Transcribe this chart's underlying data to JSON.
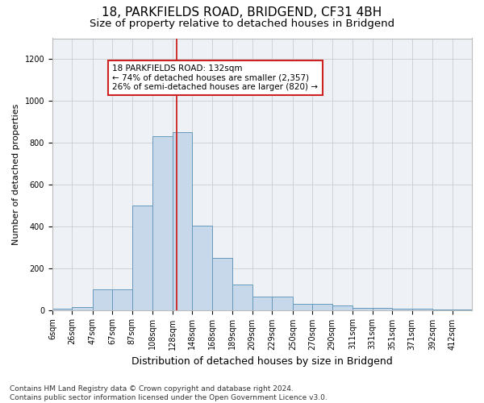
{
  "title_line1": "18, PARKFIELDS ROAD, BRIDGEND, CF31 4BH",
  "title_line2": "Size of property relative to detached houses in Bridgend",
  "xlabel": "Distribution of detached houses by size in Bridgend",
  "ylabel": "Number of detached properties",
  "footnote": "Contains HM Land Registry data © Crown copyright and database right 2024.\nContains public sector information licensed under the Open Government Licence v3.0.",
  "bin_labels": [
    "6sqm",
    "26sqm",
    "47sqm",
    "67sqm",
    "87sqm",
    "108sqm",
    "128sqm",
    "148sqm",
    "168sqm",
    "189sqm",
    "209sqm",
    "229sqm",
    "250sqm",
    "270sqm",
    "290sqm",
    "311sqm",
    "331sqm",
    "351sqm",
    "371sqm",
    "392sqm",
    "412sqm"
  ],
  "bar_heights": [
    5,
    12,
    100,
    100,
    500,
    830,
    850,
    405,
    250,
    120,
    65,
    65,
    30,
    30,
    20,
    10,
    10,
    5,
    5,
    3,
    3
  ],
  "bar_color": "#c8d8eb",
  "bar_edgecolor": "#6699bb",
  "bar_linewidth": 0.7,
  "vline_color": "#cc2222",
  "annotation_text": "18 PARKFIELDS ROAD: 132sqm\n← 74% of detached houses are smaller (2,357)\n26% of semi-detached houses are larger (820) →",
  "annotation_box_edgecolor": "#cc2222",
  "annotation_box_facecolor": "white",
  "ylim": [
    0,
    1300
  ],
  "yticks": [
    0,
    200,
    400,
    600,
    800,
    1000,
    1200
  ],
  "grid_color": "#cccccc",
  "bg_color": "#eef2f7",
  "title1_fontsize": 11,
  "title2_fontsize": 9.5,
  "xlabel_fontsize": 9,
  "ylabel_fontsize": 8,
  "tick_fontsize": 7,
  "annot_fontsize": 7.5,
  "footnote_fontsize": 6.5,
  "bin_edges": [
    6,
    26,
    47,
    67,
    87,
    108,
    128,
    148,
    168,
    189,
    209,
    229,
    250,
    270,
    290,
    311,
    331,
    351,
    371,
    392,
    412,
    432
  ]
}
